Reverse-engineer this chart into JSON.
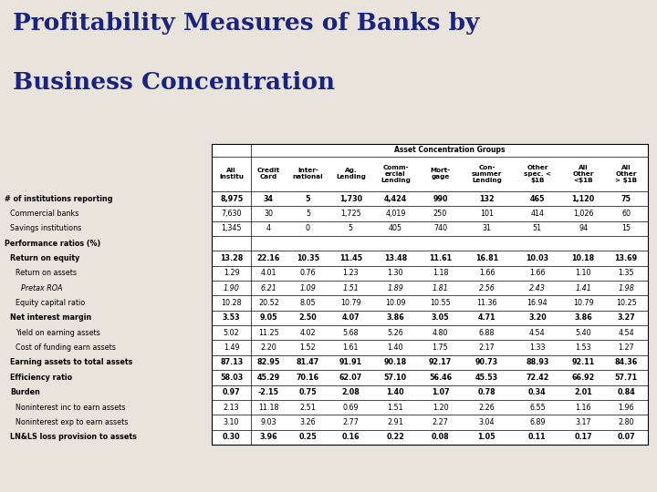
{
  "title_line1": "Profitability Measures of Banks by",
  "title_line2": "Business Concentration",
  "title_color": "#1a237e",
  "bg_color": "#e8e4dc",
  "col_headers_group": "Asset Concentration Groups",
  "col_labels": [
    "All\nInstitu",
    "Credit\nCard",
    "Inter-\nnational",
    "Ag.\nLending",
    "Comm-\nercial\nLending",
    "Mort-\ngage",
    "Con-\nsummer\nLending",
    "Other\nspec. <\n$1B",
    "All\nOther\n<$1B",
    "All\nOther\n> $1B"
  ],
  "rows": [
    {
      "label": "# of institutions reporting",
      "indent": 0,
      "bold": true,
      "italic": false,
      "vals": [
        "8,975",
        "34",
        "5",
        "1,730",
        "4,424",
        "990",
        "132",
        "465",
        "1,120",
        "75"
      ]
    },
    {
      "label": "Commercial banks",
      "indent": 1,
      "bold": false,
      "italic": false,
      "vals": [
        "7,630",
        "30",
        "5",
        "1,725",
        "4,019",
        "250",
        "101",
        "414",
        "1,026",
        "60"
      ]
    },
    {
      "label": "Savings institutions",
      "indent": 1,
      "bold": false,
      "italic": false,
      "vals": [
        "1,345",
        "4",
        "0",
        "5",
        "405",
        "740",
        "31",
        "51",
        "94",
        "15"
      ]
    },
    {
      "label": "Performance ratios (%)",
      "indent": 0,
      "bold": true,
      "italic": false,
      "vals": [
        "",
        "",
        "",
        "",
        "",
        "",
        "",
        "",
        "",
        ""
      ]
    },
    {
      "label": "Return on equity",
      "indent": 1,
      "bold": true,
      "italic": false,
      "vals": [
        "13.28",
        "22.16",
        "10.35",
        "11.45",
        "13.48",
        "11.61",
        "16.81",
        "10.03",
        "10.18",
        "13.69"
      ]
    },
    {
      "label": "Return on assets",
      "indent": 2,
      "bold": false,
      "italic": false,
      "vals": [
        "1.29",
        "4.01",
        "0.76",
        "1.23",
        "1.30",
        "1.18",
        "1.66",
        "1.66",
        "1.10",
        "1.35"
      ]
    },
    {
      "label": "Pretax ROA",
      "indent": 3,
      "bold": false,
      "italic": true,
      "vals": [
        "1.90",
        "6.21",
        "1.09",
        "1.51",
        "1.89",
        "1.81",
        "2.56",
        "2.43",
        "1.41",
        "1.98"
      ]
    },
    {
      "label": "Equity capital ratio",
      "indent": 2,
      "bold": false,
      "italic": false,
      "vals": [
        "10.28",
        "20.52",
        "8.05",
        "10.79",
        "10.09",
        "10.55",
        "11.36",
        "16.94",
        "10.79",
        "10.25"
      ]
    },
    {
      "label": "Net interest margin",
      "indent": 1,
      "bold": true,
      "italic": false,
      "vals": [
        "3.53",
        "9.05",
        "2.50",
        "4.07",
        "3.86",
        "3.05",
        "4.71",
        "3.20",
        "3.86",
        "3.27"
      ]
    },
    {
      "label": "Yield on earning assets",
      "indent": 2,
      "bold": false,
      "italic": false,
      "vals": [
        "5.02",
        "11.25",
        "4.02",
        "5.68",
        "5.26",
        "4.80",
        "6.88",
        "4.54",
        "5.40",
        "4.54"
      ]
    },
    {
      "label": "Cost of funding earn assets",
      "indent": 2,
      "bold": false,
      "italic": false,
      "vals": [
        "1.49",
        "2.20",
        "1.52",
        "1.61",
        "1.40",
        "1.75",
        "2.17",
        "1.33",
        "1.53",
        "1.27"
      ]
    },
    {
      "label": "Earning assets to total assets",
      "indent": 1,
      "bold": true,
      "italic": false,
      "vals": [
        "87.13",
        "82.95",
        "81.47",
        "91.91",
        "90.18",
        "92.17",
        "90.73",
        "88.93",
        "92.11",
        "84.36"
      ]
    },
    {
      "label": "Efficiency ratio",
      "indent": 1,
      "bold": true,
      "italic": false,
      "vals": [
        "58.03",
        "45.29",
        "70.16",
        "62.07",
        "57.10",
        "56.46",
        "45.53",
        "72.42",
        "66.92",
        "57.71"
      ]
    },
    {
      "label": "Burden",
      "indent": 1,
      "bold": true,
      "italic": false,
      "vals": [
        "0.97",
        "-2.15",
        "0.75",
        "2.08",
        "1.40",
        "1.07",
        "0.78",
        "0.34",
        "2.01",
        "0.84"
      ]
    },
    {
      "label": "Noninterest inc to earn assets",
      "indent": 2,
      "bold": false,
      "italic": false,
      "vals": [
        "2.13",
        "11.18",
        "2.51",
        "0.69",
        "1.51",
        "1.20",
        "2.26",
        "6.55",
        "1.16",
        "1.96"
      ]
    },
    {
      "label": "Noninterest exp to earn assets",
      "indent": 2,
      "bold": false,
      "italic": false,
      "vals": [
        "3.10",
        "9.03",
        "3.26",
        "2.77",
        "2.91",
        "2.27",
        "3.04",
        "6.89",
        "3.17",
        "2.80"
      ]
    },
    {
      "label": "LN&LS loss provision to assets",
      "indent": 1,
      "bold": true,
      "italic": false,
      "vals": [
        "0.30",
        "3.96",
        "0.25",
        "0.16",
        "0.22",
        "0.08",
        "1.05",
        "0.11",
        "0.17",
        "0.07"
      ]
    }
  ]
}
